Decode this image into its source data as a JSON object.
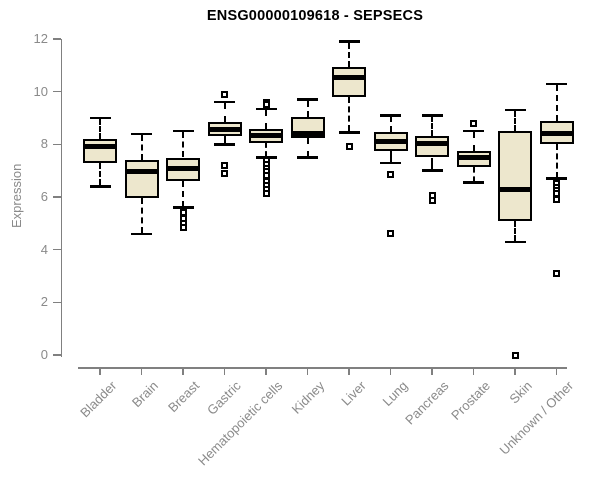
{
  "chart_data": {
    "type": "boxplot",
    "title": "ENSG00000109618 - SEPSECS",
    "xlabel": "",
    "ylabel": "Expression",
    "ylim": [
      0,
      12
    ],
    "yticks": [
      0,
      2,
      4,
      6,
      8,
      10,
      12
    ],
    "grid": false,
    "legend": "none",
    "colors": {
      "box_fill": "#EDE7CD",
      "box_border": "#000000",
      "median": "#000000",
      "axis": "#808080",
      "tick_label": "#8a8a8a",
      "title": "#000000",
      "background": "#ffffff"
    },
    "categories": [
      "Bladder",
      "Brain",
      "Breast",
      "Gastric",
      "Hematopoietic cells",
      "Kidney",
      "Liver",
      "Lung",
      "Pancreas",
      "Prostate",
      "Skin",
      "Unknown / Other"
    ],
    "series": [
      {
        "category": "Bladder",
        "whisker_low": 6.4,
        "q1": 7.3,
        "median": 7.9,
        "q3": 8.2,
        "whisker_high": 9.0,
        "outliers": []
      },
      {
        "category": "Brain",
        "whisker_low": 4.6,
        "q1": 5.95,
        "median": 6.95,
        "q3": 7.4,
        "whisker_high": 8.4,
        "outliers": []
      },
      {
        "category": "Breast",
        "whisker_low": 5.6,
        "q1": 6.6,
        "median": 7.1,
        "q3": 7.5,
        "whisker_high": 8.5,
        "outliers": [
          5.4,
          5.2,
          5.0,
          4.85
        ]
      },
      {
        "category": "Gastric",
        "whisker_low": 8.0,
        "q1": 8.3,
        "median": 8.55,
        "q3": 8.85,
        "whisker_high": 9.6,
        "outliers": [
          9.9,
          7.2,
          6.9
        ]
      },
      {
        "category": "Hematopoietic cells",
        "whisker_low": 7.5,
        "q1": 8.05,
        "median": 8.35,
        "q3": 8.6,
        "whisker_high": 9.35,
        "outliers": [
          9.6,
          9.5,
          7.4,
          7.25,
          7.1,
          6.95,
          6.8,
          6.6,
          6.45,
          6.3,
          6.15
        ]
      },
      {
        "category": "Kidney",
        "whisker_low": 7.5,
        "q1": 8.25,
        "median": 8.4,
        "q3": 9.05,
        "whisker_high": 9.7,
        "outliers": []
      },
      {
        "category": "Liver",
        "whisker_low": 8.45,
        "q1": 9.8,
        "median": 10.55,
        "q3": 10.95,
        "whisker_high": 11.9,
        "outliers": [
          7.9
        ]
      },
      {
        "category": "Lung",
        "whisker_low": 7.3,
        "q1": 7.75,
        "median": 8.1,
        "q3": 8.45,
        "whisker_high": 9.1,
        "outliers": [
          6.85,
          4.6
        ]
      },
      {
        "category": "Pancreas",
        "whisker_low": 7.0,
        "q1": 7.5,
        "median": 8.05,
        "q3": 8.3,
        "whisker_high": 9.1,
        "outliers": [
          6.05,
          5.85
        ]
      },
      {
        "category": "Prostate",
        "whisker_low": 6.55,
        "q1": 7.15,
        "median": 7.5,
        "q3": 7.75,
        "whisker_high": 8.5,
        "outliers": [
          8.8
        ]
      },
      {
        "category": "Skin",
        "whisker_low": 4.3,
        "q1": 5.1,
        "median": 6.3,
        "q3": 8.5,
        "whisker_high": 9.3,
        "outliers": [
          0.0
        ]
      },
      {
        "category": "Unknown / Other",
        "whisker_low": 6.7,
        "q1": 8.0,
        "median": 8.4,
        "q3": 8.9,
        "whisker_high": 10.3,
        "outliers": [
          6.6,
          6.5,
          6.35,
          6.25,
          6.15,
          5.9,
          3.1
        ]
      }
    ]
  }
}
